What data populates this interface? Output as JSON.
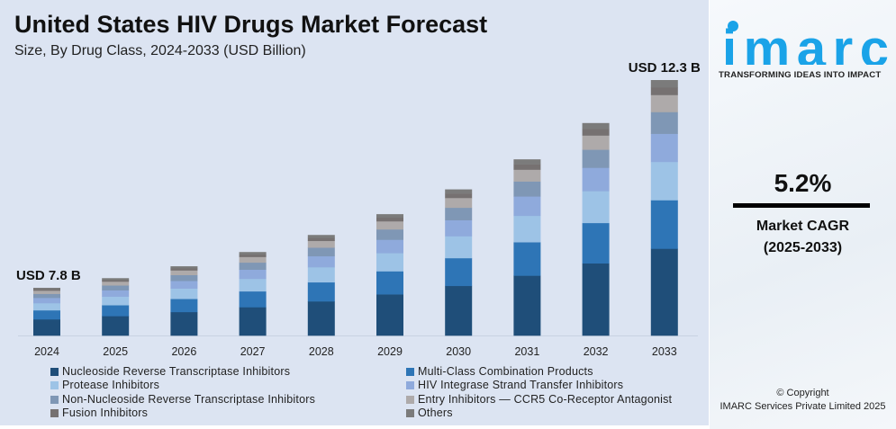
{
  "title": "United States HIV Drugs Market Forecast",
  "subtitle": "Size, By Drug Class, 2024-2033 (USD Billion)",
  "chart_data": {
    "type": "bar",
    "stacked": true,
    "categories": [
      "2024",
      "2025",
      "2026",
      "2027",
      "2028",
      "2029",
      "2030",
      "2031",
      "2032",
      "2033"
    ],
    "totals": [
      7.8,
      8.2,
      8.63,
      9.08,
      9.55,
      10.05,
      10.57,
      11.12,
      11.7,
      12.3
    ],
    "first_label": "USD 7.8 B",
    "last_label": "USD 12.3 B",
    "series": [
      {
        "name": "Nucleoside Reverse Transcriptase Inhibitors",
        "share": 0.34,
        "color": "#1f4e79"
      },
      {
        "name": "Multi-Class Combination Products",
        "share": 0.19,
        "color": "#2e75b6"
      },
      {
        "name": "Protease Inhibitors",
        "share": 0.15,
        "color": "#9dc3e6"
      },
      {
        "name": "HIV Integrase Strand Transfer Inhibitors",
        "share": 0.11,
        "color": "#8faadc"
      },
      {
        "name": "Non-Nucleoside Reverse Transcriptase Inhibitors",
        "share": 0.085,
        "color": "#7f97b5"
      },
      {
        "name": "Entry Inhibitors — CCR5 Co-Receptor Antagonist",
        "share": 0.067,
        "color": "#aeaaaa"
      },
      {
        "name": "Fusion Inhibitors",
        "share": 0.03,
        "color": "#767171"
      },
      {
        "name": "Others",
        "share": 0.028,
        "color": "#7b7b7b"
      }
    ],
    "legend_position": "bottom",
    "grid": false
  },
  "side": {
    "logo": "imarc",
    "tagline": "TRANSFORMING IDEAS INTO IMPACT",
    "cagr_value": "5.2%",
    "cagr_label": "Market CAGR",
    "cagr_period": "(2025-2033)",
    "copyright": "© Copyright",
    "company": "IMARC Services Private Limited 2025",
    "accent": "#1aa3e8"
  }
}
